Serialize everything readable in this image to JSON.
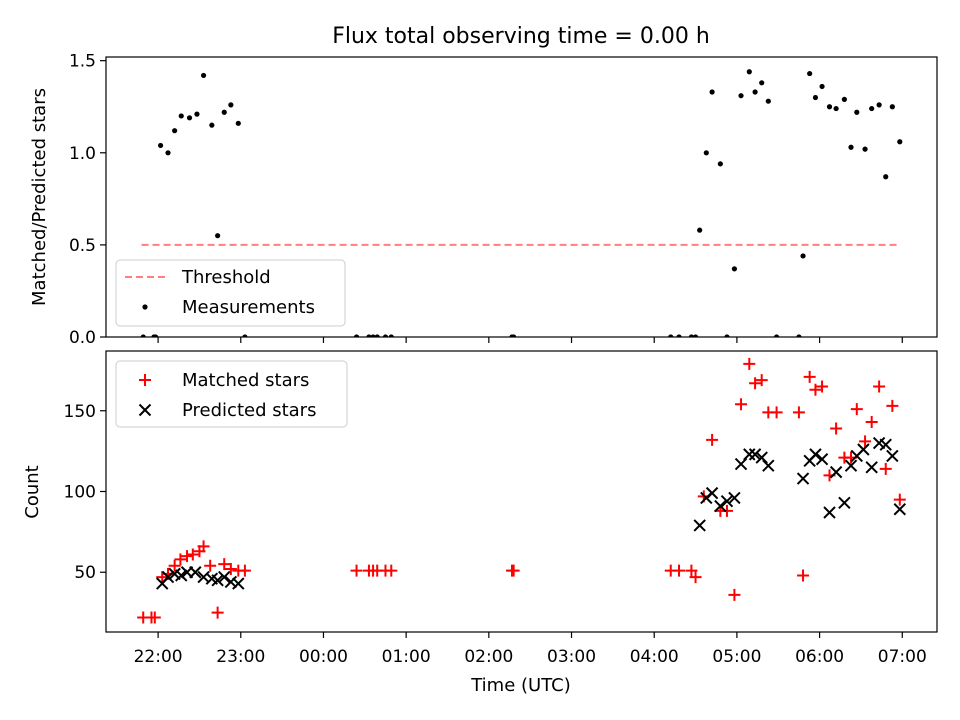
{
  "figure": {
    "title": "Flux total observing time = 0.00 h",
    "xlabel": "Time (UTC)",
    "xticks": [
      "22:00",
      "23:00",
      "00:00",
      "01:00",
      "02:00",
      "03:00",
      "04:00",
      "05:00",
      "06:00",
      "07:00"
    ]
  },
  "chart_data": [
    {
      "type": "scatter",
      "title": "Flux total observing time = 0.00 h",
      "ylabel": "Matched/Predicted stars",
      "xlabel": "Time (UTC)",
      "x_unit": "UTC time, hours after 00:00 of the first night (values above 24 are on the following day)",
      "xlim": [
        21.37,
        31.42
      ],
      "ylim": [
        0,
        1.52
      ],
      "yticks": [
        "0.0",
        "0.5",
        "1.0",
        "1.5"
      ],
      "legend": {
        "placement": "lower-left",
        "entries": [
          "Threshold",
          "Measurements"
        ]
      },
      "threshold": {
        "name": "Threshold",
        "value": 0.5,
        "x_range": [
          21.8,
          30.98
        ],
        "color": "#ff7f7f",
        "style": "dashed"
      },
      "series": [
        {
          "name": "Measurements",
          "color": "#000000",
          "points": [
            [
              21.82,
              0
            ],
            [
              21.95,
              0
            ],
            [
              21.97,
              0
            ],
            [
              22.03,
              1.04
            ],
            [
              22.12,
              1.0
            ],
            [
              22.2,
              1.12
            ],
            [
              22.28,
              1.2
            ],
            [
              22.38,
              1.19
            ],
            [
              22.47,
              1.21
            ],
            [
              22.55,
              1.42
            ],
            [
              22.65,
              1.15
            ],
            [
              22.72,
              0.55
            ],
            [
              22.8,
              1.22
            ],
            [
              22.88,
              1.26
            ],
            [
              22.97,
              1.16
            ],
            [
              23.05,
              0
            ],
            [
              24.4,
              0
            ],
            [
              24.55,
              0
            ],
            [
              24.6,
              0
            ],
            [
              24.65,
              0
            ],
            [
              24.75,
              0
            ],
            [
              24.82,
              0
            ],
            [
              26.28,
              0
            ],
            [
              26.3,
              0
            ],
            [
              28.2,
              0
            ],
            [
              28.3,
              0
            ],
            [
              28.45,
              0
            ],
            [
              28.5,
              0
            ],
            [
              28.55,
              0.58
            ],
            [
              28.63,
              1.0
            ],
            [
              28.7,
              1.33
            ],
            [
              28.8,
              0.94
            ],
            [
              28.88,
              0
            ],
            [
              28.97,
              0.37
            ],
            [
              29.05,
              1.31
            ],
            [
              29.15,
              1.44
            ],
            [
              29.22,
              1.33
            ],
            [
              29.3,
              1.38
            ],
            [
              29.38,
              1.28
            ],
            [
              29.48,
              0
            ],
            [
              29.75,
              0
            ],
            [
              29.8,
              0.44
            ],
            [
              29.88,
              1.43
            ],
            [
              29.95,
              1.3
            ],
            [
              30.03,
              1.36
            ],
            [
              30.12,
              1.25
            ],
            [
              30.2,
              1.24
            ],
            [
              30.3,
              1.29
            ],
            [
              30.38,
              1.03
            ],
            [
              30.45,
              1.22
            ],
            [
              30.55,
              1.02
            ],
            [
              30.63,
              1.24
            ],
            [
              30.72,
              1.26
            ],
            [
              30.8,
              0.87
            ],
            [
              30.88,
              1.25
            ],
            [
              30.97,
              1.06
            ]
          ]
        }
      ]
    },
    {
      "type": "scatter",
      "ylabel": "Count",
      "xlabel": "Time (UTC)",
      "x_unit": "UTC time, hours after 00:00 of the first night (values above 24 are on the following day)",
      "xlim": [
        21.37,
        31.42
      ],
      "ylim": [
        13,
        187
      ],
      "yticks": [
        "50",
        "100",
        "150"
      ],
      "legend": {
        "placement": "upper-left",
        "entries": [
          "Matched stars",
          "Predicted stars"
        ]
      },
      "series": [
        {
          "name": "Matched stars",
          "color": "#ff0000",
          "marker": "plus",
          "points": [
            [
              21.82,
              22
            ],
            [
              21.92,
              22
            ],
            [
              21.96,
              22
            ],
            [
              22.05,
              47
            ],
            [
              22.12,
              49
            ],
            [
              22.2,
              54
            ],
            [
              22.27,
              58
            ],
            [
              22.35,
              60
            ],
            [
              22.42,
              61
            ],
            [
              22.5,
              63
            ],
            [
              22.55,
              66
            ],
            [
              22.63,
              54
            ],
            [
              22.72,
              25
            ],
            [
              22.8,
              55
            ],
            [
              22.88,
              52
            ],
            [
              22.97,
              51
            ],
            [
              23.05,
              51
            ],
            [
              24.4,
              51
            ],
            [
              24.55,
              51
            ],
            [
              24.6,
              51
            ],
            [
              24.65,
              51
            ],
            [
              24.75,
              51
            ],
            [
              24.82,
              51
            ],
            [
              26.28,
              51
            ],
            [
              26.3,
              51
            ],
            [
              28.2,
              51
            ],
            [
              28.3,
              51
            ],
            [
              28.45,
              51
            ],
            [
              28.5,
              47
            ],
            [
              28.6,
              97
            ],
            [
              28.7,
              132
            ],
            [
              28.8,
              88
            ],
            [
              28.88,
              88
            ],
            [
              28.97,
              36
            ],
            [
              29.05,
              154
            ],
            [
              29.15,
              179
            ],
            [
              29.22,
              167
            ],
            [
              29.3,
              169
            ],
            [
              29.38,
              149
            ],
            [
              29.48,
              149
            ],
            [
              29.75,
              149
            ],
            [
              29.8,
              48
            ],
            [
              29.88,
              171
            ],
            [
              29.95,
              163
            ],
            [
              30.03,
              165
            ],
            [
              30.12,
              110
            ],
            [
              30.2,
              139
            ],
            [
              30.3,
              121
            ],
            [
              30.38,
              121
            ],
            [
              30.45,
              151
            ],
            [
              30.55,
              131
            ],
            [
              30.63,
              143
            ],
            [
              30.72,
              165
            ],
            [
              30.8,
              114
            ],
            [
              30.88,
              153
            ],
            [
              30.97,
              95
            ]
          ]
        },
        {
          "name": "Predicted stars",
          "color": "#000000",
          "marker": "x",
          "points": [
            [
              22.05,
              43
            ],
            [
              22.12,
              47
            ],
            [
              22.2,
              49
            ],
            [
              22.28,
              48
            ],
            [
              22.35,
              50
            ],
            [
              22.45,
              50
            ],
            [
              22.55,
              47
            ],
            [
              22.65,
              46
            ],
            [
              22.72,
              45
            ],
            [
              22.8,
              47
            ],
            [
              22.88,
              44
            ],
            [
              22.97,
              43
            ],
            [
              28.55,
              79
            ],
            [
              28.63,
              96
            ],
            [
              28.7,
              99
            ],
            [
              28.8,
              91
            ],
            [
              28.88,
              94
            ],
            [
              28.97,
              96
            ],
            [
              29.05,
              117
            ],
            [
              29.15,
              123
            ],
            [
              29.22,
              123
            ],
            [
              29.3,
              121
            ],
            [
              29.38,
              116
            ],
            [
              29.8,
              108
            ],
            [
              29.88,
              119
            ],
            [
              29.95,
              123
            ],
            [
              30.03,
              120
            ],
            [
              30.12,
              87
            ],
            [
              30.2,
              112
            ],
            [
              30.3,
              93
            ],
            [
              30.38,
              116
            ],
            [
              30.45,
              122
            ],
            [
              30.53,
              126
            ],
            [
              30.63,
              115
            ],
            [
              30.72,
              130
            ],
            [
              30.8,
              129
            ],
            [
              30.88,
              122
            ],
            [
              30.97,
              89
            ]
          ]
        }
      ]
    }
  ]
}
